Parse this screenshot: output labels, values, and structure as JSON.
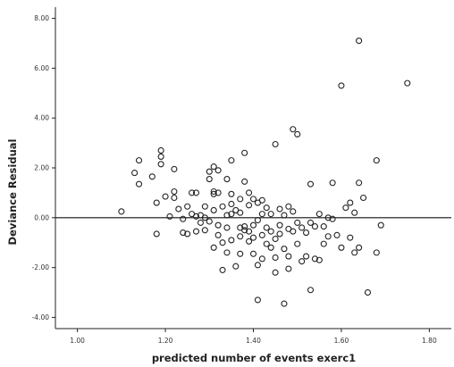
{
  "chart_data": {
    "type": "scatter",
    "title": "",
    "xlabel": "predicted number of events exerc1",
    "ylabel": "Deviance Residual",
    "xlim": [
      0.95,
      1.85
    ],
    "ylim": [
      -4.45,
      8.45
    ],
    "x_ticks": [
      1.0,
      1.2,
      1.4,
      1.6,
      1.8
    ],
    "x_tick_labels": [
      "1.00",
      "1.20",
      "1.40",
      "1.60",
      "1.80"
    ],
    "y_ticks": [
      -4,
      -2,
      0,
      2,
      4,
      6,
      8
    ],
    "y_tick_labels": [
      "-4.00",
      "-2.00",
      "0.00",
      "2.00",
      "4.00",
      "6.00",
      "8.00"
    ],
    "reference_line_y": 0,
    "grid": false,
    "legend": "none",
    "series": [
      {
        "marker": "open-circle",
        "points": [
          [
            1.1,
            0.25
          ],
          [
            1.13,
            1.8
          ],
          [
            1.14,
            2.3
          ],
          [
            1.14,
            1.35
          ],
          [
            1.17,
            1.65
          ],
          [
            1.18,
            0.6
          ],
          [
            1.18,
            -0.65
          ],
          [
            1.19,
            2.7
          ],
          [
            1.19,
            2.45
          ],
          [
            1.19,
            2.15
          ],
          [
            1.2,
            0.85
          ],
          [
            1.21,
            0.05
          ],
          [
            1.22,
            1.95
          ],
          [
            1.22,
            1.05
          ],
          [
            1.22,
            0.8
          ],
          [
            1.23,
            0.35
          ],
          [
            1.24,
            -0.05
          ],
          [
            1.24,
            -0.6
          ],
          [
            1.25,
            0.45
          ],
          [
            1.25,
            -0.65
          ],
          [
            1.26,
            1.0
          ],
          [
            1.26,
            0.15
          ],
          [
            1.27,
            1.0
          ],
          [
            1.27,
            0.05
          ],
          [
            1.27,
            -0.55
          ],
          [
            1.28,
            -0.2
          ],
          [
            1.28,
            0.1
          ],
          [
            1.29,
            0.0
          ],
          [
            1.29,
            -0.5
          ],
          [
            1.29,
            0.45
          ],
          [
            1.3,
            1.85
          ],
          [
            1.3,
            1.55
          ],
          [
            1.3,
            -0.15
          ],
          [
            1.31,
            2.05
          ],
          [
            1.31,
            1.05
          ],
          [
            1.31,
            0.95
          ],
          [
            1.31,
            0.3
          ],
          [
            1.31,
            -1.2
          ],
          [
            1.32,
            1.9
          ],
          [
            1.32,
            1.0
          ],
          [
            1.32,
            -0.3
          ],
          [
            1.32,
            -0.7
          ],
          [
            1.33,
            0.45
          ],
          [
            1.33,
            -1.0
          ],
          [
            1.33,
            -2.1
          ],
          [
            1.34,
            1.55
          ],
          [
            1.34,
            0.1
          ],
          [
            1.34,
            -0.4
          ],
          [
            1.34,
            -1.4
          ],
          [
            1.35,
            2.3
          ],
          [
            1.35,
            0.95
          ],
          [
            1.35,
            0.55
          ],
          [
            1.35,
            0.15
          ],
          [
            1.35,
            -0.9
          ],
          [
            1.36,
            0.3
          ],
          [
            1.36,
            -1.95
          ],
          [
            1.37,
            0.75
          ],
          [
            1.37,
            0.2
          ],
          [
            1.37,
            -0.4
          ],
          [
            1.37,
            -0.75
          ],
          [
            1.37,
            -1.45
          ],
          [
            1.38,
            2.6
          ],
          [
            1.38,
            1.45
          ],
          [
            1.38,
            -0.35
          ],
          [
            1.38,
            -0.5
          ],
          [
            1.39,
            1.0
          ],
          [
            1.39,
            0.5
          ],
          [
            1.39,
            -0.55
          ],
          [
            1.39,
            -0.95
          ],
          [
            1.4,
            0.75
          ],
          [
            1.4,
            -0.3
          ],
          [
            1.4,
            -0.8
          ],
          [
            1.4,
            -1.45
          ],
          [
            1.41,
            0.6
          ],
          [
            1.41,
            -0.1
          ],
          [
            1.41,
            -1.9
          ],
          [
            1.41,
            -3.3
          ],
          [
            1.42,
            0.7
          ],
          [
            1.42,
            0.15
          ],
          [
            1.42,
            -0.7
          ],
          [
            1.42,
            -1.65
          ],
          [
            1.43,
            0.4
          ],
          [
            1.43,
            -0.4
          ],
          [
            1.43,
            -1.05
          ],
          [
            1.44,
            0.15
          ],
          [
            1.44,
            -0.55
          ],
          [
            1.44,
            -1.2
          ],
          [
            1.45,
            2.95
          ],
          [
            1.45,
            -0.85
          ],
          [
            1.45,
            -1.6
          ],
          [
            1.45,
            -2.2
          ],
          [
            1.46,
            0.35
          ],
          [
            1.46,
            -0.3
          ],
          [
            1.46,
            -0.65
          ],
          [
            1.47,
            0.1
          ],
          [
            1.47,
            -1.25
          ],
          [
            1.47,
            -3.45
          ],
          [
            1.48,
            0.45
          ],
          [
            1.48,
            -0.45
          ],
          [
            1.48,
            -1.55
          ],
          [
            1.48,
            -2.05
          ],
          [
            1.49,
            3.55
          ],
          [
            1.49,
            0.25
          ],
          [
            1.49,
            -0.55
          ],
          [
            1.5,
            3.35
          ],
          [
            1.5,
            -0.2
          ],
          [
            1.5,
            -1.05
          ],
          [
            1.51,
            -0.4
          ],
          [
            1.51,
            -1.75
          ],
          [
            1.52,
            -0.6
          ],
          [
            1.52,
            -1.55
          ],
          [
            1.53,
            1.35
          ],
          [
            1.53,
            -0.2
          ],
          [
            1.53,
            -2.9
          ],
          [
            1.54,
            -0.35
          ],
          [
            1.54,
            -1.65
          ],
          [
            1.55,
            0.15
          ],
          [
            1.55,
            -1.7
          ],
          [
            1.56,
            -0.35
          ],
          [
            1.56,
            -1.05
          ],
          [
            1.57,
            -0.75
          ],
          [
            1.57,
            0.0
          ],
          [
            1.58,
            1.4
          ],
          [
            1.58,
            -0.05
          ],
          [
            1.59,
            -0.7
          ],
          [
            1.6,
            5.3
          ],
          [
            1.6,
            -1.2
          ],
          [
            1.61,
            0.4
          ],
          [
            1.62,
            0.6
          ],
          [
            1.62,
            -0.8
          ],
          [
            1.63,
            0.2
          ],
          [
            1.63,
            -1.4
          ],
          [
            1.64,
            7.1
          ],
          [
            1.64,
            1.4
          ],
          [
            1.64,
            -1.2
          ],
          [
            1.65,
            0.8
          ],
          [
            1.66,
            -3.0
          ],
          [
            1.68,
            2.3
          ],
          [
            1.68,
            -1.4
          ],
          [
            1.69,
            -0.3
          ],
          [
            1.75,
            5.4
          ]
        ]
      }
    ]
  }
}
